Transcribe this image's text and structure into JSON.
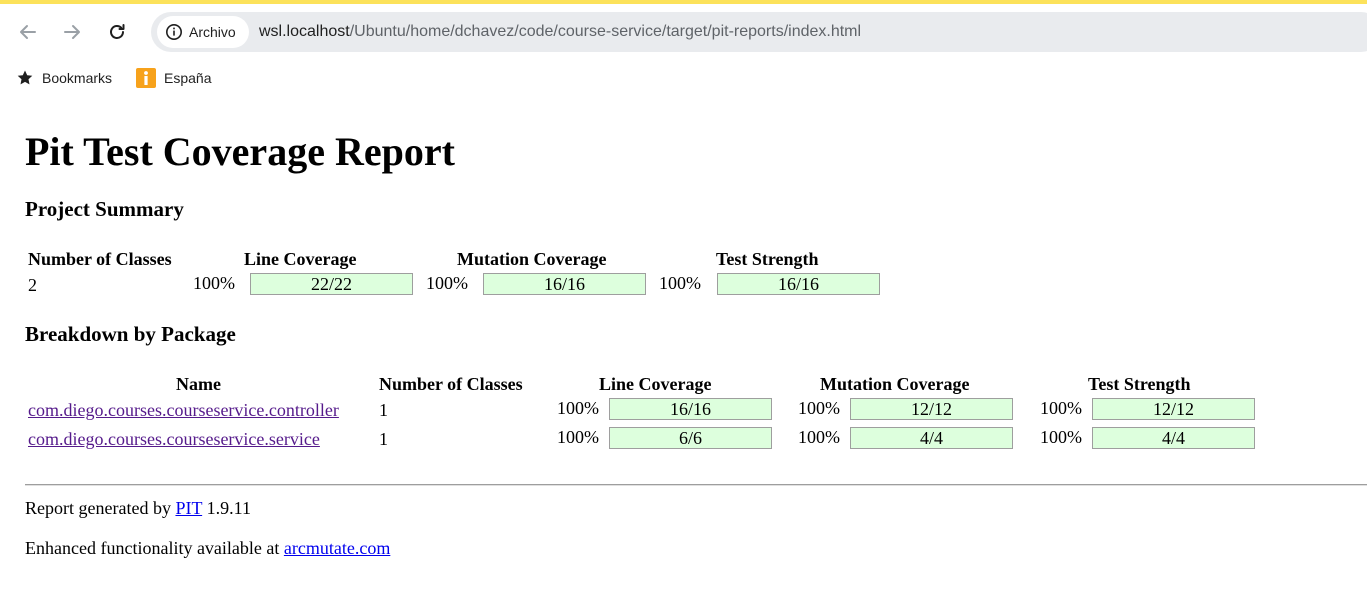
{
  "browser": {
    "chip_label": "Archivo",
    "url_host": "wsl.localhost",
    "url_path": "/Ubuntu/home/dchavez/code/course-service/target/pit-reports/index.html",
    "icons": {
      "back": "arrow-left-icon",
      "forward": "arrow-right-icon",
      "reload": "reload-icon",
      "info": "info-icon"
    }
  },
  "bookmarks_bar": {
    "items": [
      {
        "label": "Bookmarks",
        "icon": "star-icon"
      },
      {
        "label": "España",
        "icon": "info-bookmark-icon"
      }
    ]
  },
  "report": {
    "title": "Pit Test Coverage Report",
    "project_summary": {
      "heading": "Project Summary",
      "headers": {
        "classes": "Number of Classes",
        "line": "Line Coverage",
        "mutation": "Mutation Coverage",
        "strength": "Test Strength"
      },
      "row": {
        "classes": "2",
        "line_pct": "100%",
        "line_ratio": "22/22",
        "mutation_pct": "100%",
        "mutation_ratio": "16/16",
        "strength_pct": "100%",
        "strength_ratio": "16/16"
      }
    },
    "breakdown": {
      "heading": "Breakdown by Package",
      "headers": {
        "name": "Name",
        "classes": "Number of Classes",
        "line": "Line Coverage",
        "mutation": "Mutation Coverage",
        "strength": "Test Strength"
      },
      "rows": [
        {
          "name": "com.diego.courses.courseservice.controller",
          "classes": "1",
          "line_pct": "100%",
          "line_ratio": "16/16",
          "mutation_pct": "100%",
          "mutation_ratio": "12/12",
          "strength_pct": "100%",
          "strength_ratio": "12/12"
        },
        {
          "name": "com.diego.courses.courseservice.service",
          "classes": "1",
          "line_pct": "100%",
          "line_ratio": "6/6",
          "mutation_pct": "100%",
          "mutation_ratio": "4/4",
          "strength_pct": "100%",
          "strength_ratio": "4/4"
        }
      ]
    },
    "footer": {
      "generated_prefix": "Report generated by",
      "pit_link": "PIT",
      "version": "1.9.11",
      "enhanced_prefix": "Enhanced functionality available at",
      "arcmutate_link": "arcmutate.com"
    },
    "colors": {
      "bar_fill": "#ddffdd",
      "bar_border": "#9e9e9e",
      "visited_link": "#551a8b",
      "link": "#0000ee"
    }
  }
}
